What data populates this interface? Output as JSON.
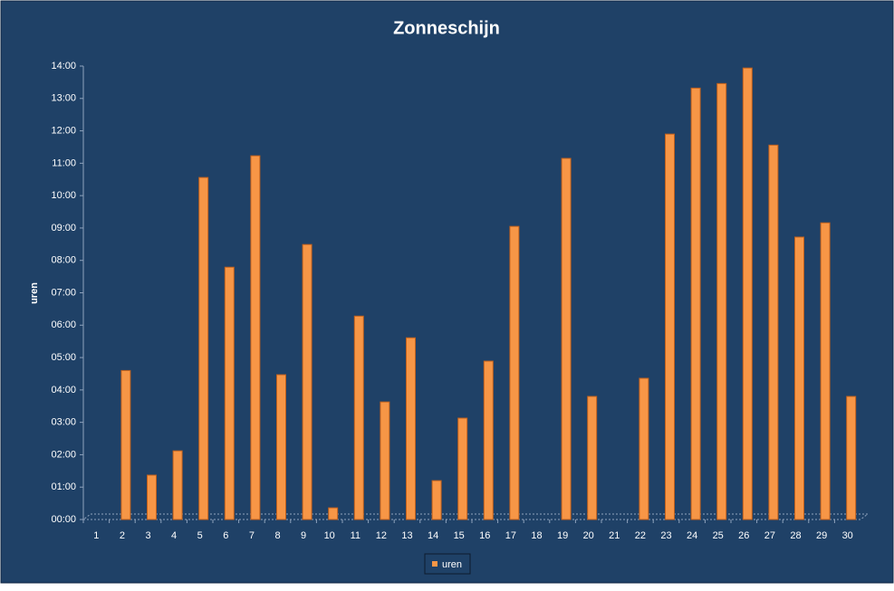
{
  "chart_data": {
    "type": "bar",
    "title": "Zonneschijn",
    "y_label": "uren",
    "categories": [
      "1",
      "2",
      "3",
      "4",
      "5",
      "6",
      "7",
      "8",
      "9",
      "10",
      "11",
      "12",
      "13",
      "14",
      "15",
      "16",
      "17",
      "18",
      "19",
      "20",
      "21",
      "22",
      "23",
      "24",
      "25",
      "26",
      "27",
      "28",
      "29",
      "30"
    ],
    "series": [
      {
        "name": "uren",
        "color": "#f79646",
        "values": [
          0,
          4.6,
          1.37,
          2.12,
          10.56,
          7.79,
          11.23,
          4.47,
          8.49,
          0.36,
          6.28,
          3.63,
          5.61,
          1.2,
          3.13,
          4.89,
          9.05,
          0,
          11.15,
          3.8,
          0,
          4.36,
          11.9,
          13.32,
          13.46,
          13.94,
          11.56,
          8.72,
          9.16,
          3.8
        ]
      }
    ],
    "ylim": [
      0,
      14
    ],
    "yticks": [
      {
        "value": 0,
        "label": "00:00"
      },
      {
        "value": 1,
        "label": "01:00"
      },
      {
        "value": 2,
        "label": "02:00"
      },
      {
        "value": 3,
        "label": "03:00"
      },
      {
        "value": 4,
        "label": "04:00"
      },
      {
        "value": 5,
        "label": "05:00"
      },
      {
        "value": 6,
        "label": "06:00"
      },
      {
        "value": 7,
        "label": "07:00"
      },
      {
        "value": 8,
        "label": "08:00"
      },
      {
        "value": 9,
        "label": "09:00"
      },
      {
        "value": 10,
        "label": "10:00"
      },
      {
        "value": 11,
        "label": "11:00"
      },
      {
        "value": 12,
        "label": "12:00"
      },
      {
        "value": 13,
        "label": "13:00"
      },
      {
        "value": 14,
        "label": "14:00"
      }
    ],
    "legend": "bottom"
  }
}
